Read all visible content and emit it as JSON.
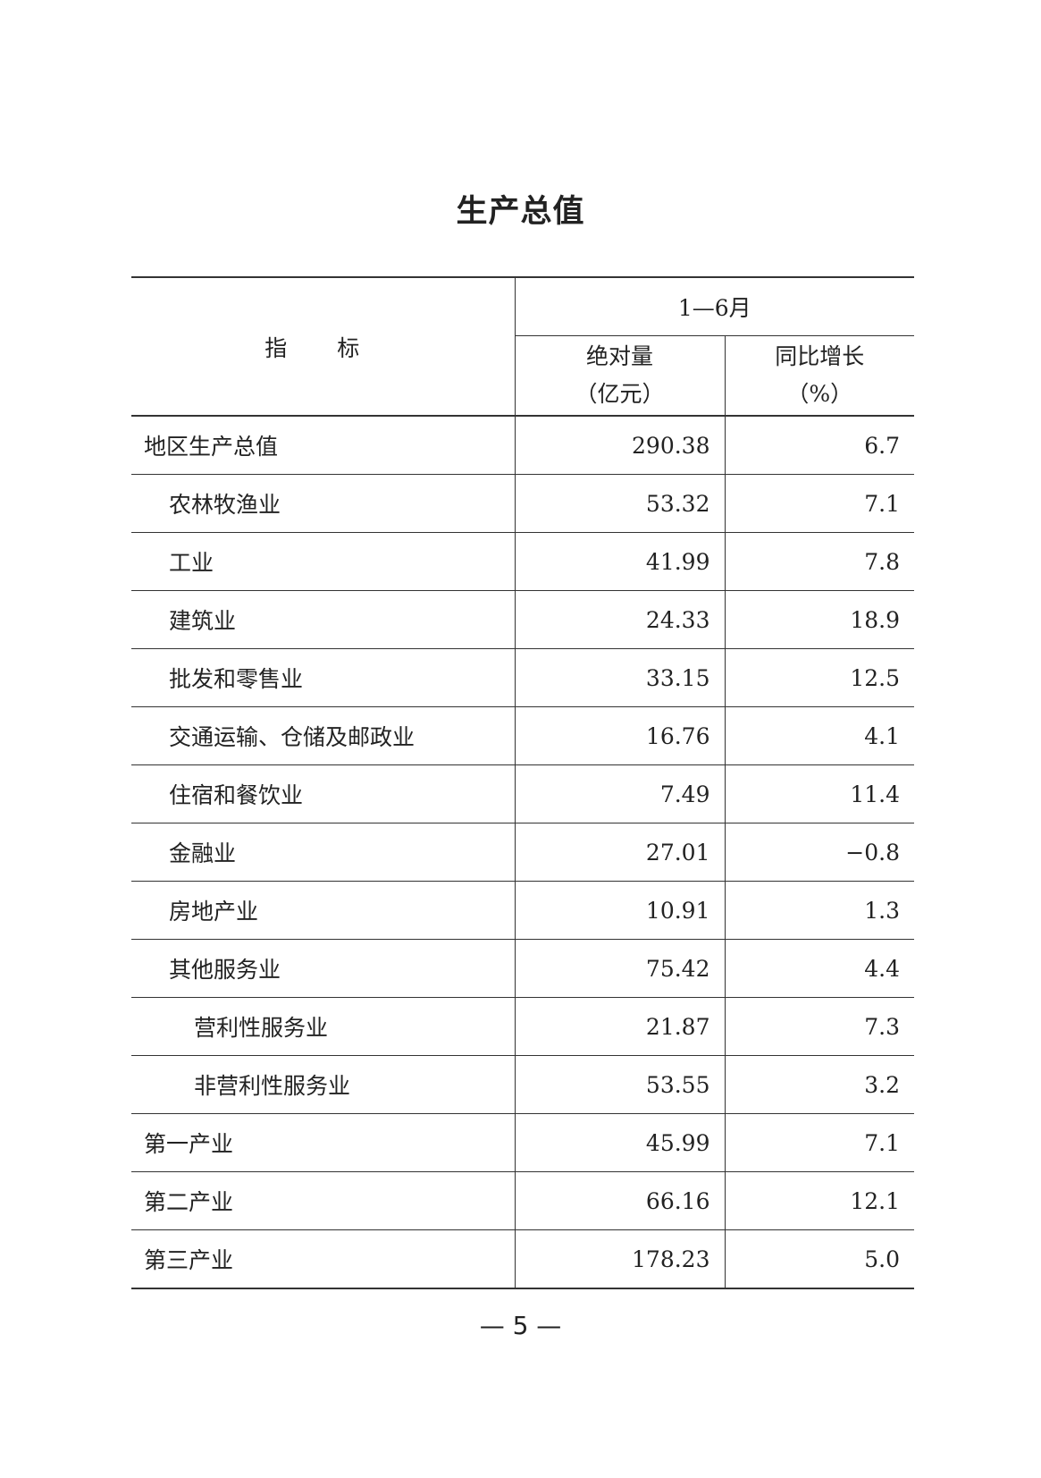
{
  "title": "生产总值",
  "header": {
    "indicator": "指 标",
    "period": "1—6月",
    "abs_label": "绝对量",
    "abs_unit": "（亿元）",
    "growth_label": "同比增长",
    "growth_unit": "（%）"
  },
  "rows": [
    {
      "name": "地区生产总值",
      "level": 0,
      "abs": "290.38",
      "growth": "6.7"
    },
    {
      "name": "农林牧渔业",
      "level": 1,
      "abs": "53.32",
      "growth": "7.1"
    },
    {
      "name": "工业",
      "level": 1,
      "abs": "41.99",
      "growth": "7.8"
    },
    {
      "name": "建筑业",
      "level": 1,
      "abs": "24.33",
      "growth": "18.9"
    },
    {
      "name": "批发和零售业",
      "level": 1,
      "abs": "33.15",
      "growth": "12.5"
    },
    {
      "name": "交通运输、仓储及邮政业",
      "level": 1,
      "abs": "16.76",
      "growth": "4.1"
    },
    {
      "name": "住宿和餐饮业",
      "level": 1,
      "abs": "7.49",
      "growth": "11.4"
    },
    {
      "name": "金融业",
      "level": 1,
      "abs": "27.01",
      "growth": "−0.8"
    },
    {
      "name": "房地产业",
      "level": 1,
      "abs": "10.91",
      "growth": "1.3"
    },
    {
      "name": "其他服务业",
      "level": 1,
      "abs": "75.42",
      "growth": "4.4"
    },
    {
      "name": "营利性服务业",
      "level": 2,
      "abs": "21.87",
      "growth": "7.3"
    },
    {
      "name": "非营利性服务业",
      "level": 2,
      "abs": "53.55",
      "growth": "3.2"
    },
    {
      "name": "第一产业",
      "level": 0,
      "abs": "45.99",
      "growth": "7.1"
    },
    {
      "name": "第二产业",
      "level": 0,
      "abs": "66.16",
      "growth": "12.1"
    },
    {
      "name": "第三产业",
      "level": 0,
      "abs": "178.23",
      "growth": "5.0"
    }
  ],
  "page_number": "— 5 —"
}
